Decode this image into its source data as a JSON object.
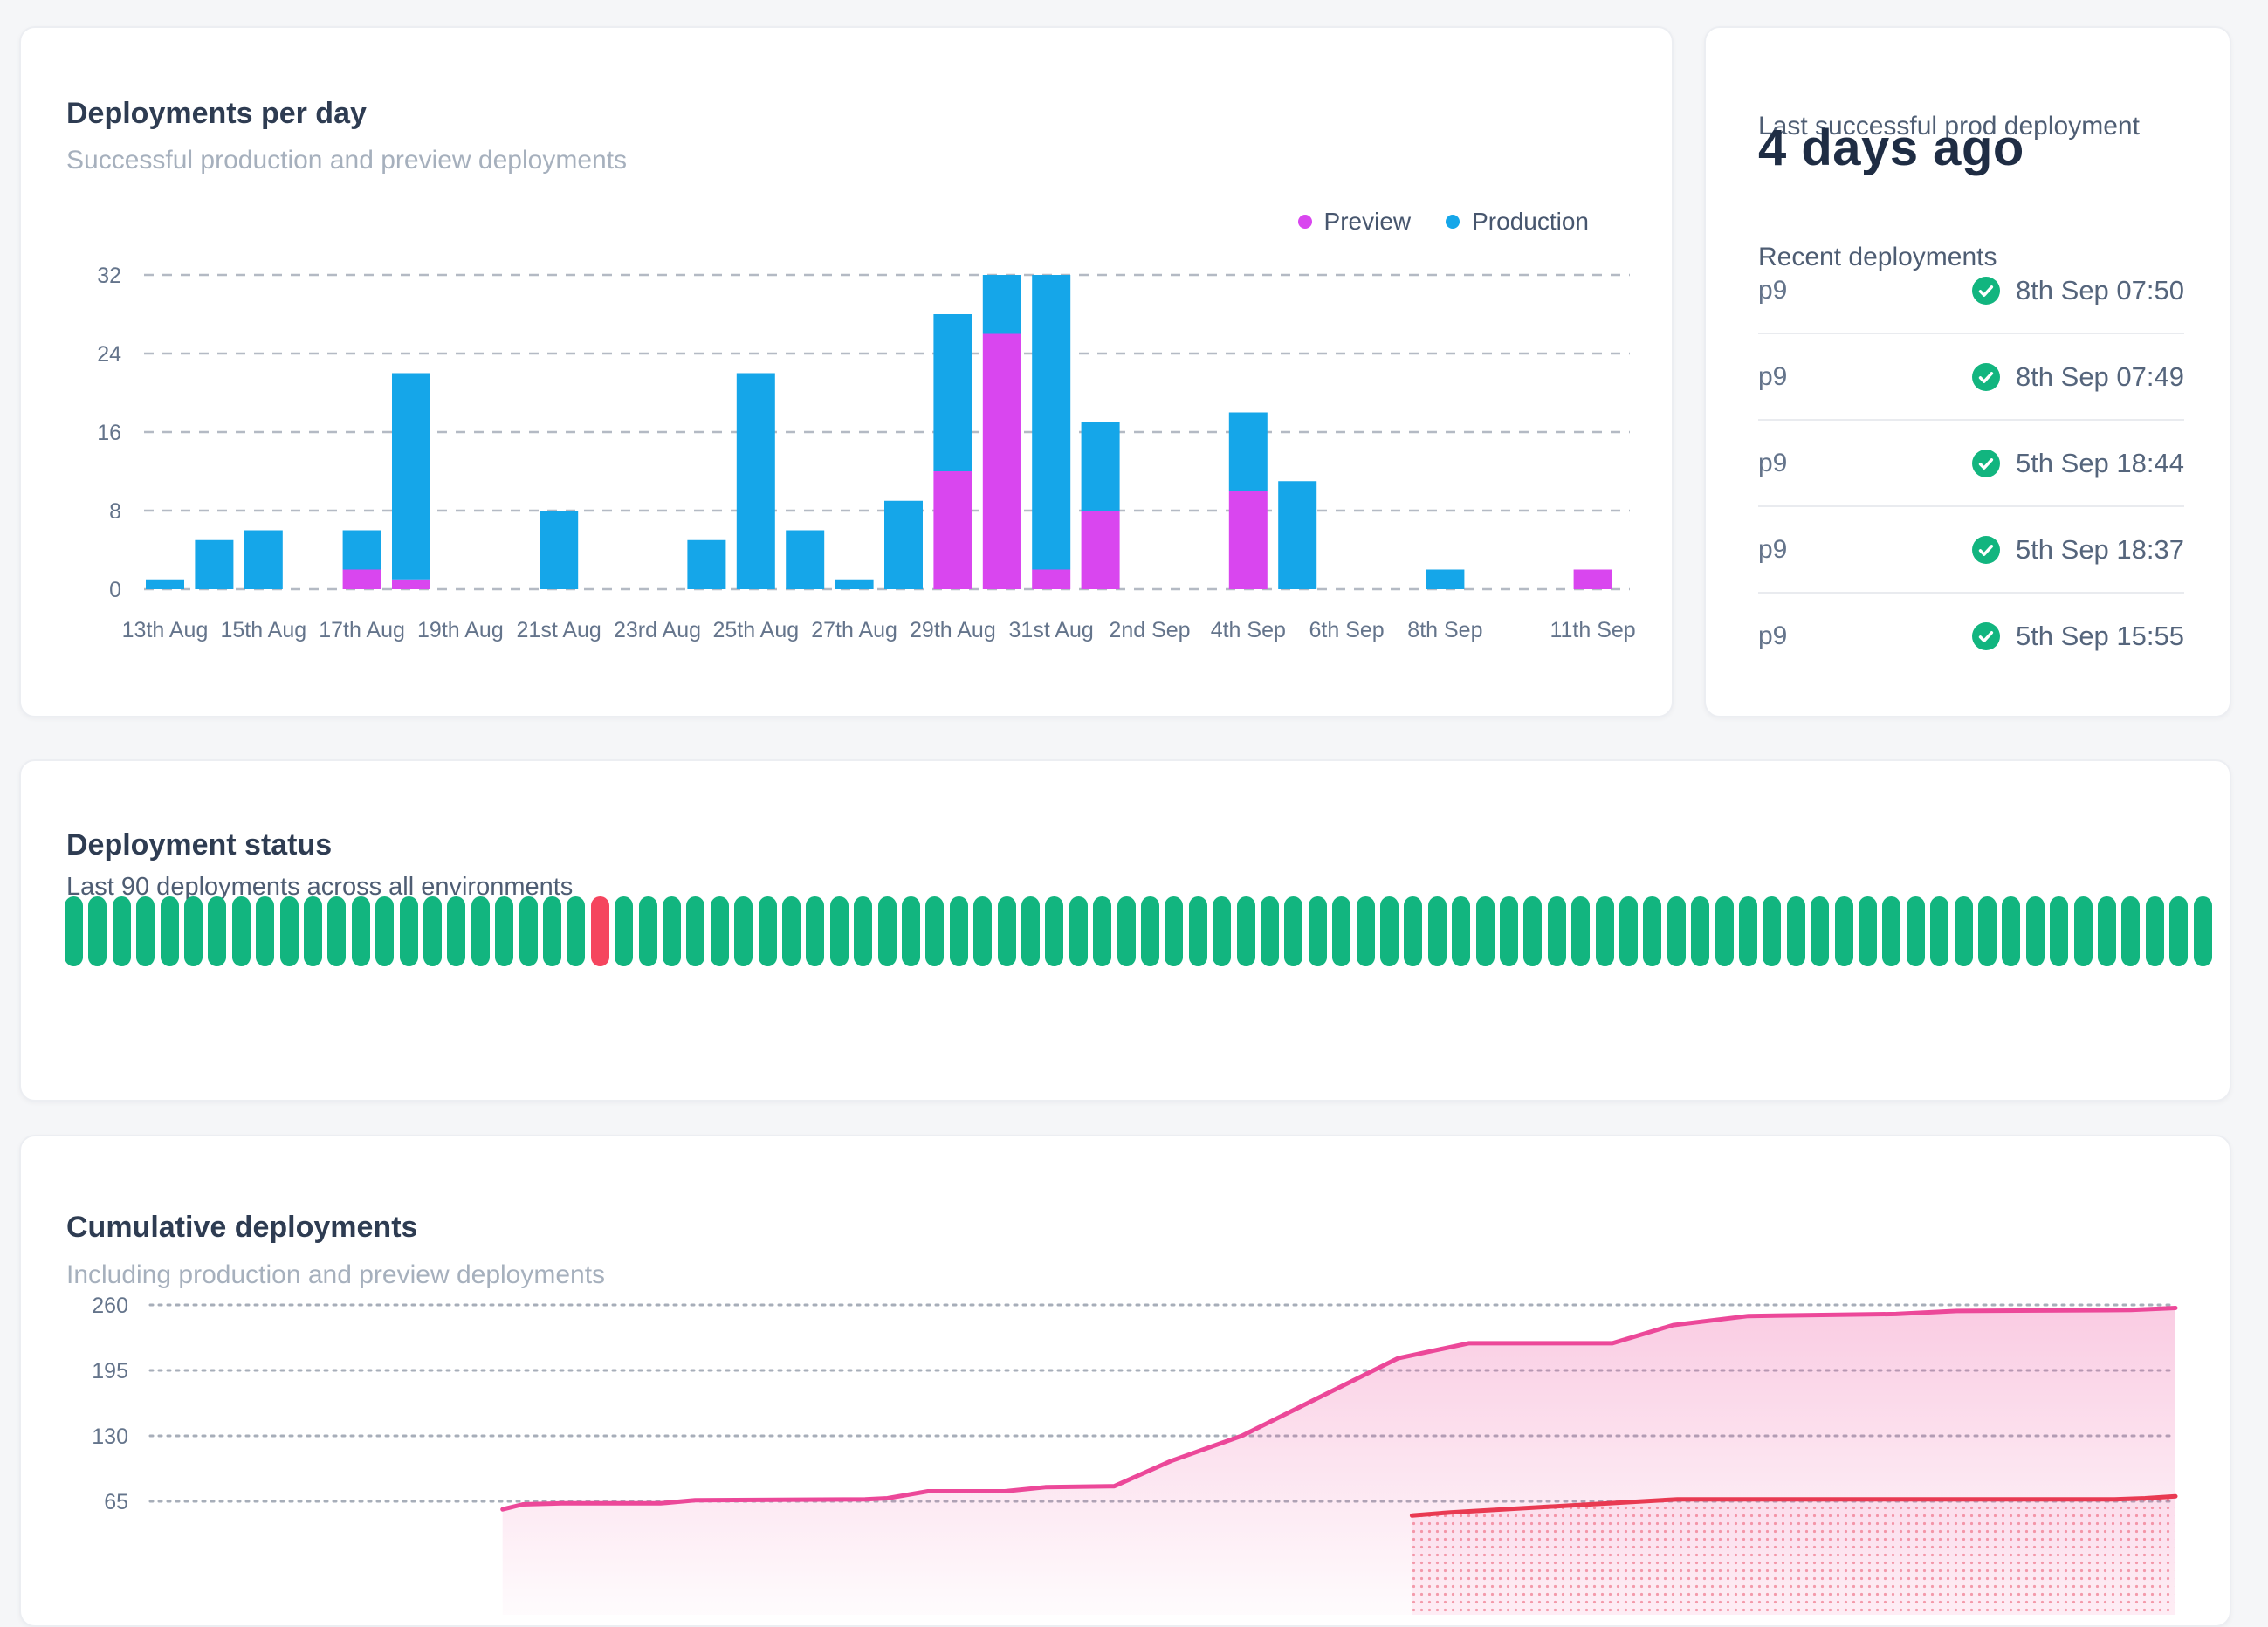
{
  "colors": {
    "preview": "#d946ef",
    "production": "#15a6e9",
    "pill_success": "#12b57f",
    "pill_failed": "#f5455e",
    "line_pink": "#ec4899",
    "line_red": "#e93a52",
    "check_green": "#12b57f"
  },
  "cards": {
    "deployments_per_day": {
      "title": "Deployments per day",
      "subtitle": "Successful production and preview deployments",
      "legend": [
        {
          "label": "Preview",
          "color": "#d946ef"
        },
        {
          "label": "Production",
          "color": "#15a6e9"
        }
      ],
      "chart_data": {
        "type": "bar",
        "stacked": true,
        "ylim": [
          0,
          32
        ],
        "y_ticks": [
          0,
          8,
          16,
          24,
          32
        ],
        "categories": [
          "13 Aug",
          "14 Aug",
          "15 Aug",
          "16 Aug",
          "17 Aug",
          "18 Aug",
          "19 Aug",
          "20 Aug",
          "21 Aug",
          "22 Aug",
          "23 Aug",
          "24 Aug",
          "25 Aug",
          "26 Aug",
          "27 Aug",
          "28 Aug",
          "29 Aug",
          "30 Aug",
          "31 Aug",
          "1 Sep",
          "2 Sep",
          "3 Sep",
          "4 Sep",
          "5 Sep",
          "6 Sep",
          "7 Sep",
          "8 Sep",
          "9 Sep",
          "10 Sep",
          "11 Sep"
        ],
        "x_ticks": [
          {
            "index": 0,
            "label": "13th Aug"
          },
          {
            "index": 2,
            "label": "15th Aug"
          },
          {
            "index": 4,
            "label": "17th Aug"
          },
          {
            "index": 6,
            "label": "19th Aug"
          },
          {
            "index": 8,
            "label": "21st Aug"
          },
          {
            "index": 10,
            "label": "23rd Aug"
          },
          {
            "index": 12,
            "label": "25th Aug"
          },
          {
            "index": 14,
            "label": "27th Aug"
          },
          {
            "index": 16,
            "label": "29th Aug"
          },
          {
            "index": 18,
            "label": "31st Aug"
          },
          {
            "index": 20,
            "label": "2nd Sep"
          },
          {
            "index": 22,
            "label": "4th Sep"
          },
          {
            "index": 24,
            "label": "6th Sep"
          },
          {
            "index": 26,
            "label": "8th Sep"
          },
          {
            "index": 29,
            "label": "11th Sep"
          }
        ],
        "series": [
          {
            "name": "Preview",
            "color": "#d946ef",
            "values": [
              0,
              0,
              0,
              0,
              2,
              1,
              0,
              0,
              0,
              0,
              0,
              0,
              0,
              0,
              0,
              0,
              12,
              26,
              2,
              8,
              0,
              0,
              10,
              0,
              0,
              0,
              0,
              0,
              0,
              2
            ]
          },
          {
            "name": "Production",
            "color": "#15a6e9",
            "values": [
              1,
              5,
              6,
              0,
              4,
              21,
              0,
              0,
              8,
              0,
              0,
              5,
              22,
              6,
              1,
              9,
              16,
              6,
              30,
              9,
              0,
              0,
              8,
              11,
              0,
              0,
              2,
              0,
              0,
              0
            ]
          }
        ]
      }
    },
    "last_prod": {
      "title": "Last successful prod deployment",
      "value": "4 days ago",
      "list_title": "Recent deployments",
      "deployments": [
        {
          "name": "p9",
          "status": "success",
          "timestamp": "8th Sep 07:50"
        },
        {
          "name": "p9",
          "status": "success",
          "timestamp": "8th Sep 07:49"
        },
        {
          "name": "p9",
          "status": "success",
          "timestamp": "5th Sep 18:44"
        },
        {
          "name": "p9",
          "status": "success",
          "timestamp": "5th Sep 18:37"
        },
        {
          "name": "p9",
          "status": "success",
          "timestamp": "5th Sep 15:55"
        }
      ]
    },
    "deployment_status": {
      "title": "Deployment status",
      "subtitle": "Last 90 deployments across all environments",
      "pills": {
        "total": 90,
        "failed_positions_1based": [
          23
        ],
        "success_color": "#12b57f",
        "failed_color": "#f5455e"
      }
    },
    "cumulative": {
      "title": "Cumulative deployments",
      "subtitle": "Including production and preview deployments",
      "chart_data": {
        "type": "area",
        "y_ticks": [
          260,
          195,
          130,
          65
        ],
        "ylim_visible_bottom": 52,
        "points_format": "[x_fraction_across_plot, cumulative_value_estimated]",
        "series": [
          {
            "name": "pink_line_total",
            "color": "#ec4899",
            "points": [
              [
                0.174,
                57
              ],
              [
                0.184,
                62
              ],
              [
                0.203,
                63
              ],
              [
                0.252,
                63
              ],
              [
                0.269,
                66
              ],
              [
                0.353,
                67
              ],
              [
                0.364,
                68
              ],
              [
                0.384,
                75
              ],
              [
                0.422,
                75
              ],
              [
                0.442,
                79
              ],
              [
                0.476,
                80
              ],
              [
                0.504,
                105
              ],
              [
                0.539,
                130
              ],
              [
                0.616,
                207
              ],
              [
                0.651,
                222
              ],
              [
                0.722,
                222
              ],
              [
                0.752,
                240
              ],
              [
                0.789,
                249
              ],
              [
                0.862,
                251
              ],
              [
                0.892,
                254
              ],
              [
                0.978,
                255
              ],
              [
                1.0,
                257
              ]
            ]
          },
          {
            "name": "red_line",
            "color": "#e93a52",
            "points": [
              [
                0.623,
                51
              ],
              [
                0.642,
                54
              ],
              [
                0.754,
                67
              ],
              [
                0.97,
                67
              ],
              [
                0.985,
                68
              ],
              [
                1.0,
                70
              ]
            ]
          }
        ]
      }
    }
  }
}
